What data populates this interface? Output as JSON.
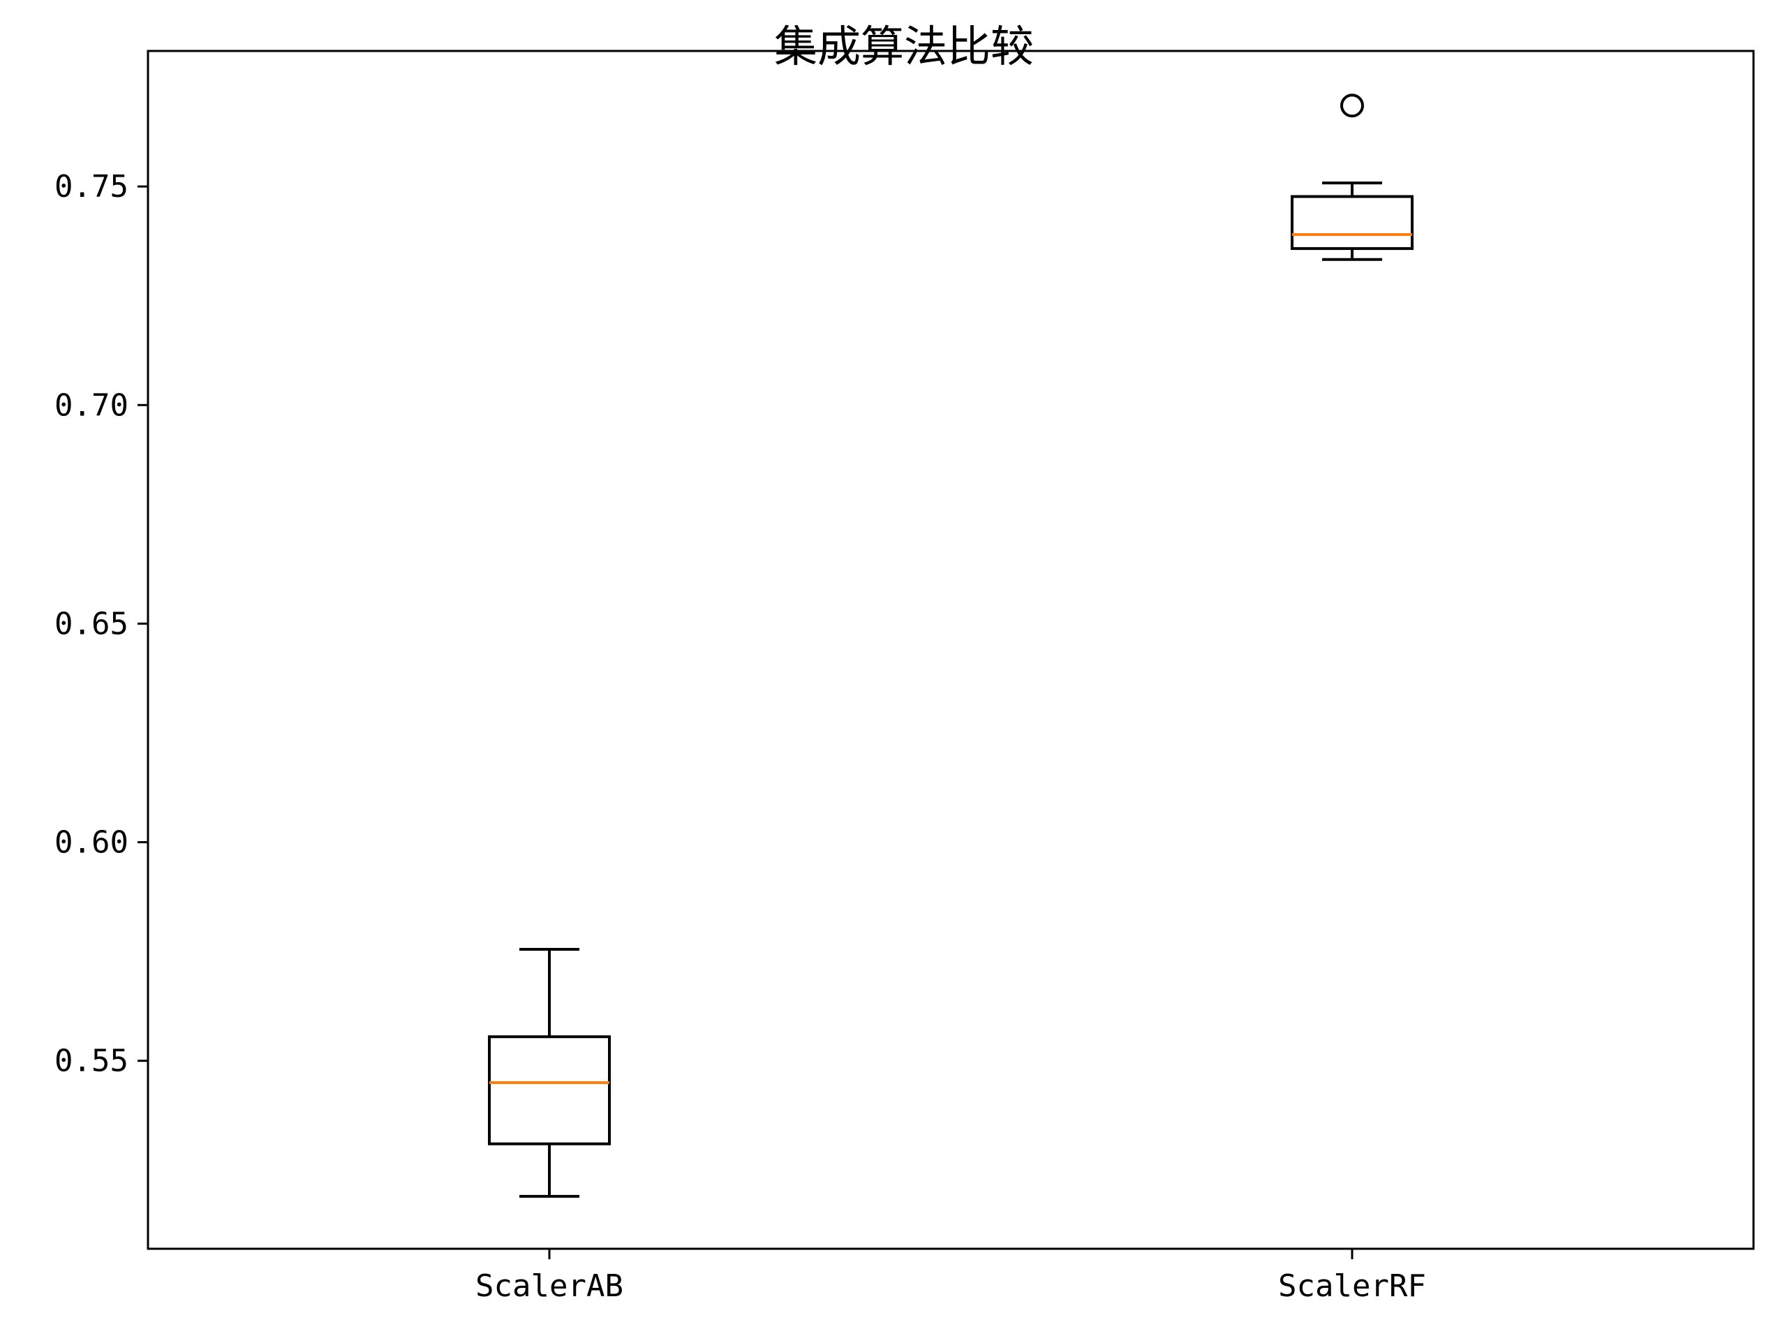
{
  "chart_data": {
    "type": "box",
    "title": "集成算法比较",
    "xlabel": "",
    "ylabel": "",
    "categories": [
      "ScalerAB",
      "ScalerRF"
    ],
    "boxes": [
      {
        "category": "ScalerAB",
        "whisker_low": 0.519,
        "q1": 0.531,
        "median": 0.545,
        "q3": 0.5555,
        "whisker_high": 0.5755,
        "outliers": []
      },
      {
        "category": "ScalerRF",
        "whisker_low": 0.7333,
        "q1": 0.7358,
        "median": 0.739,
        "q3": 0.7477,
        "whisker_high": 0.7508,
        "outliers": [
          0.7685
        ]
      }
    ],
    "yticks": [
      0.55,
      0.6,
      0.65,
      0.7,
      0.75
    ],
    "ytick_labels": [
      "0.55",
      "0.60",
      "0.65",
      "0.70",
      "0.75"
    ],
    "ylim": [
      0.507,
      0.781
    ],
    "grid": false,
    "legend": "none",
    "colors": {
      "box": "#000000",
      "median": "#ff7f0e",
      "outlier": "#000000",
      "axes": "#000000",
      "background": "#ffffff"
    }
  }
}
